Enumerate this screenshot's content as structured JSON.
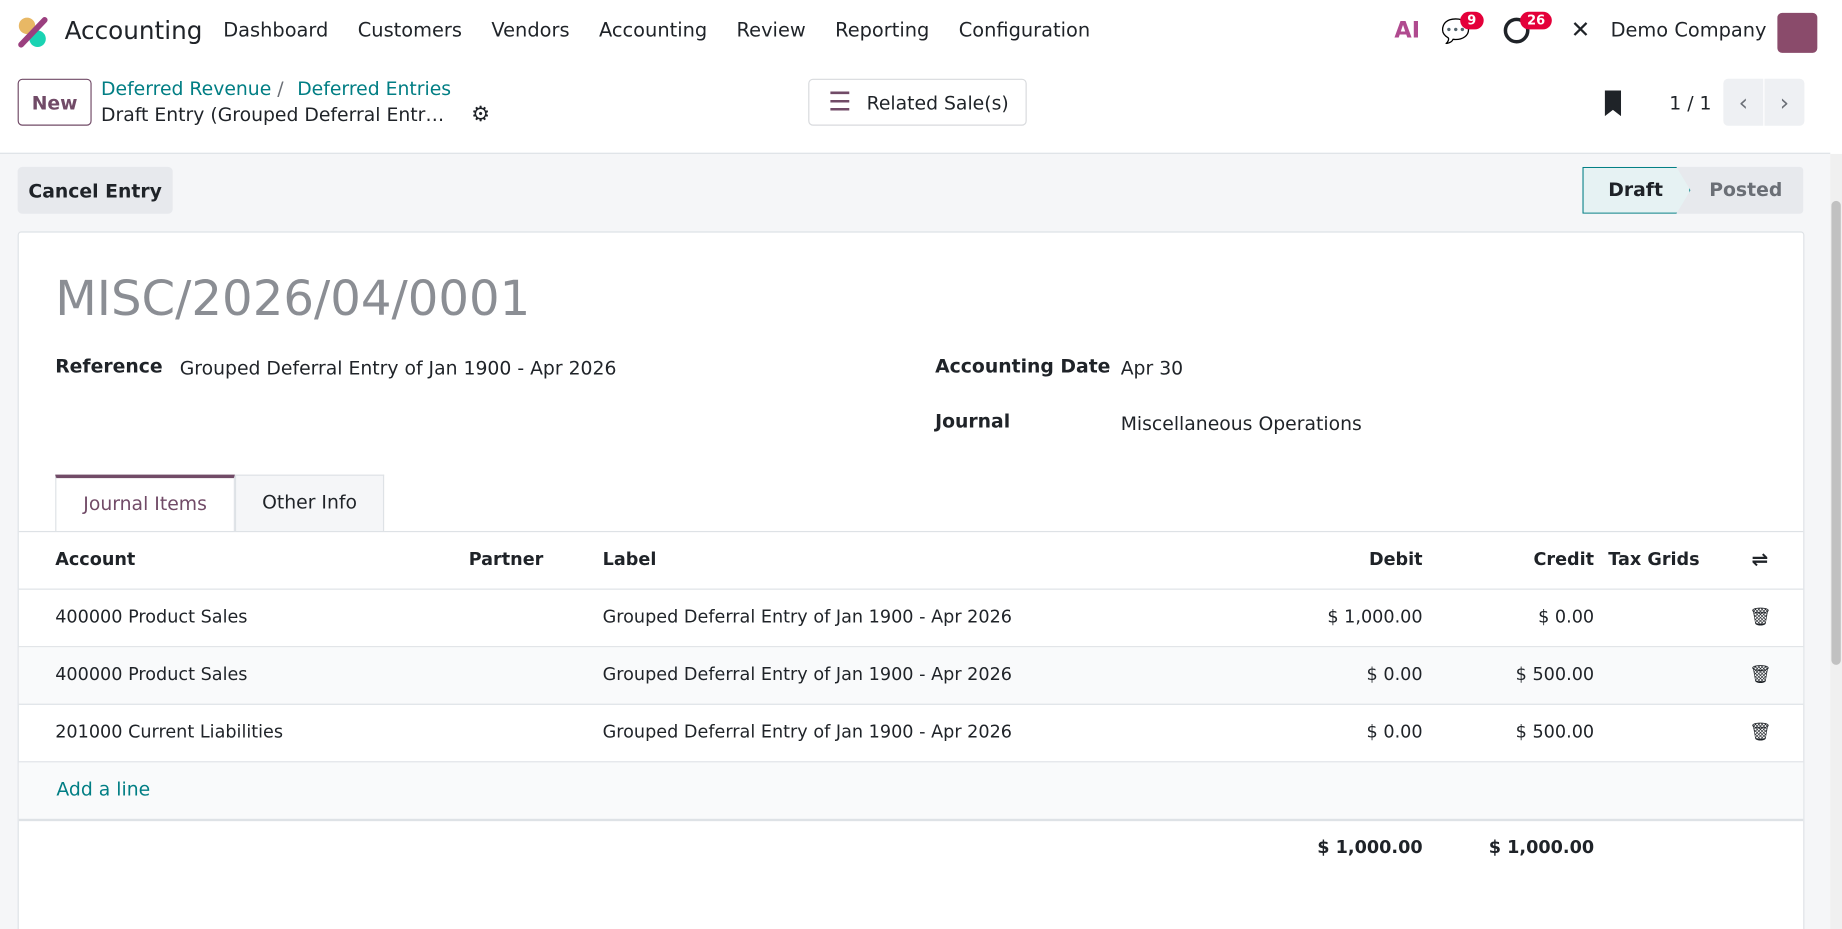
{
  "navbar": {
    "app_name": "Accounting",
    "menu": [
      "Dashboard",
      "Customers",
      "Vendors",
      "Accounting",
      "Review",
      "Reporting",
      "Configuration"
    ],
    "messages_count": "9",
    "activities_count": "26",
    "company": "Demo Company",
    "ai_label": "AI"
  },
  "control_panel": {
    "new_label": "New",
    "breadcrumb": [
      "Deferred Revenue",
      "Deferred Entries"
    ],
    "record_title": "Draft Entry (Grouped Deferral Entr…",
    "related_button": "Related Sale(s)",
    "pager": "1 / 1"
  },
  "statusbar": {
    "cancel_label": "Cancel Entry",
    "stages": [
      "Draft",
      "Posted"
    ],
    "active_stage": "Draft"
  },
  "form": {
    "name": "MISC/2026/04/0001",
    "reference_label": "Reference",
    "reference_value": "Grouped Deferral Entry of Jan 1900 - Apr 2026",
    "date_label": "Accounting Date",
    "date_value": "Apr 30",
    "journal_label": "Journal",
    "journal_value": "Miscellaneous Operations"
  },
  "tabs": [
    {
      "label": "Journal Items",
      "active": true
    },
    {
      "label": "Other Info",
      "active": false
    }
  ],
  "table": {
    "columns": [
      "Account",
      "Partner",
      "Label",
      "Debit",
      "Credit",
      "Tax Grids"
    ],
    "rows": [
      {
        "account": "400000 Product Sales",
        "partner": "",
        "label": "Grouped Deferral Entry of Jan 1900 - Apr 2026",
        "debit": "$ 1,000.00",
        "credit": "$ 0.00"
      },
      {
        "account": "400000 Product Sales",
        "partner": "",
        "label": "Grouped Deferral Entry of Jan 1900 - Apr 2026",
        "debit": "$ 0.00",
        "credit": "$ 500.00"
      },
      {
        "account": "201000 Current Liabilities",
        "partner": "",
        "label": "Grouped Deferral Entry of Jan 1900 - Apr 2026",
        "debit": "$ 0.00",
        "credit": "$ 500.00"
      }
    ],
    "add_line": "Add a line",
    "total_debit": "$ 1,000.00",
    "total_credit": "$ 1,000.00"
  },
  "colors": {
    "brand": "#714b67",
    "link": "#017e84",
    "badge": "#e4003a"
  }
}
